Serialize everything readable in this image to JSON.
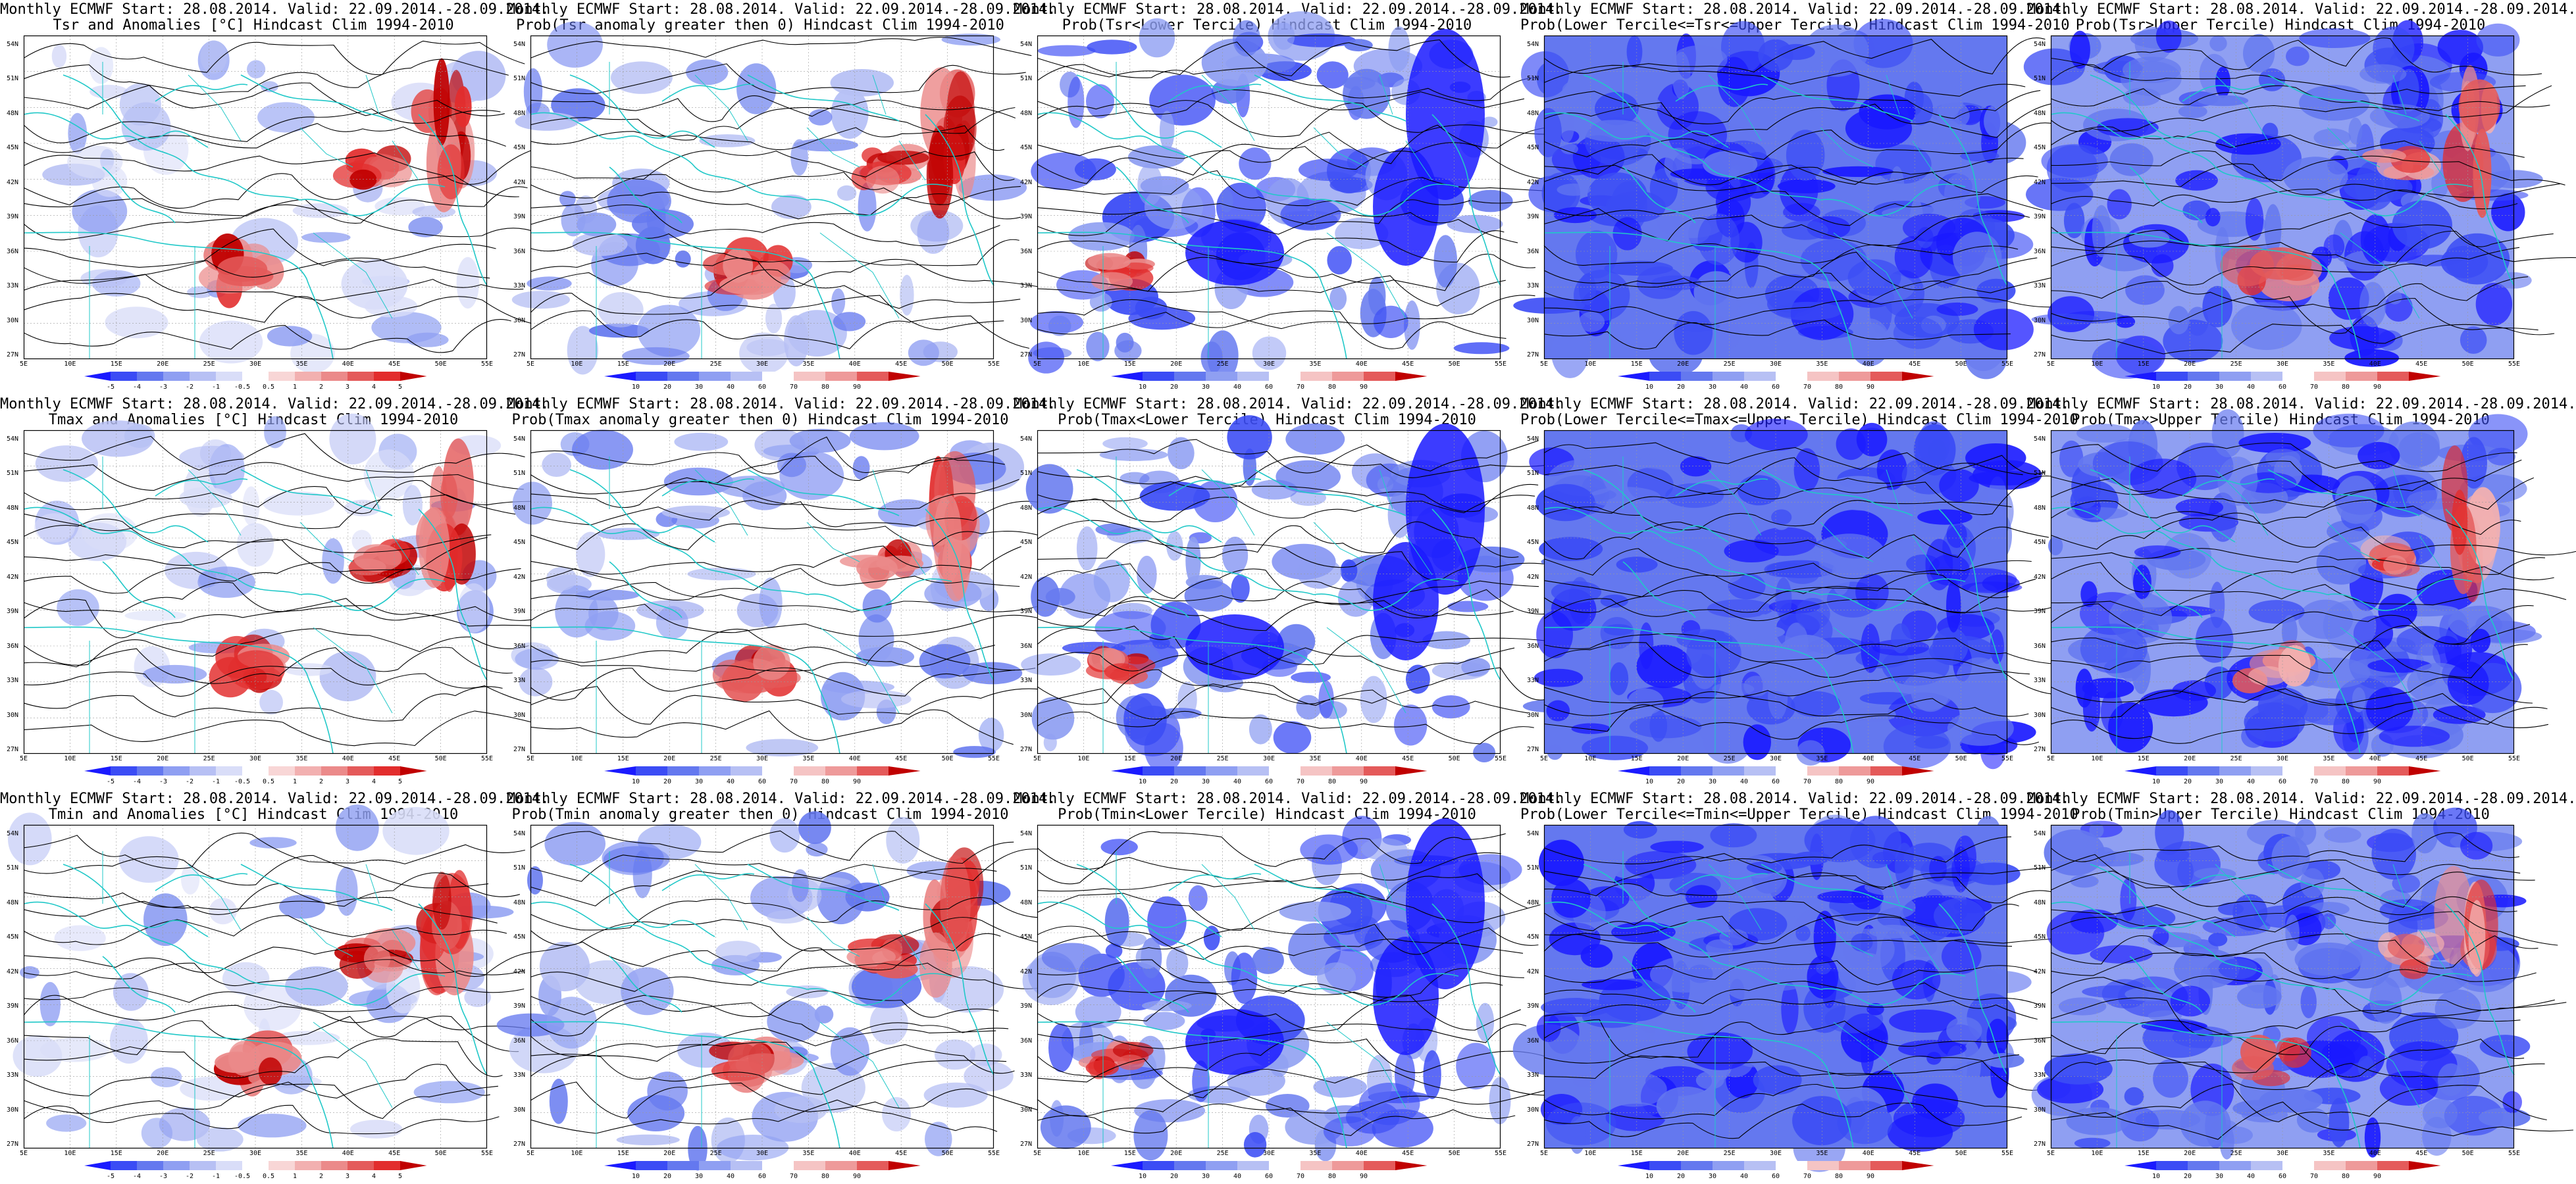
{
  "panels": [
    {
      "title1": "Monthly ECMWF Start: 28.08.2014. Valid: 22.09.2014.-28.09.2014.",
      "title2": "Tsr and Anomalies [°C] Hindcast Clim 1994-2010",
      "variable": "Tsr",
      "kind": "anomaly"
    },
    {
      "title1": "Monthly ECMWF Start: 28.08.2014. Valid: 22.09.2014.-28.09.2014.",
      "title2": "Prob(Tsr anomaly greater then 0) Hindcast Clim 1994-2010",
      "variable": "Tsr",
      "kind": "prob_pos"
    },
    {
      "title1": "Monthly ECMWF Start: 28.08.2014. Valid: 22.09.2014.-28.09.2014.",
      "title2": "Prob(Tsr<Lower Tercile) Hindcast Clim 1994-2010",
      "variable": "Tsr",
      "kind": "prob_lower"
    },
    {
      "title1": "Monthly ECMWF Start: 28.08.2014. Valid: 22.09.2014.-28.09.2014.",
      "title2": "Prob(Lower Tercile<=Tsr<=Upper Tercile) Hindcast Clim 1994-2010",
      "variable": "Tsr",
      "kind": "prob_middle"
    },
    {
      "title1": "Monthly ECMWF Start: 28.08.2014. Valid: 22.09.2014.-28.09.2014.",
      "title2": "Prob(Tsr>Upper Tercile) Hindcast Clim 1994-2010",
      "variable": "Tsr",
      "kind": "prob_upper"
    },
    {
      "title1": "Monthly ECMWF Start: 28.08.2014. Valid: 22.09.2014.-28.09.2014.",
      "title2": "Tmax and Anomalies [°C] Hindcast Clim 1994-2010",
      "variable": "Tmax",
      "kind": "anomaly"
    },
    {
      "title1": "Monthly ECMWF Start: 28.08.2014. Valid: 22.09.2014.-28.09.2014.",
      "title2": "Prob(Tmax anomaly greater then 0) Hindcast Clim 1994-2010",
      "variable": "Tmax",
      "kind": "prob_pos"
    },
    {
      "title1": "Monthly ECMWF Start: 28.08.2014. Valid: 22.09.2014.-28.09.2014.",
      "title2": "Prob(Tmax<Lower Tercile) Hindcast Clim 1994-2010",
      "variable": "Tmax",
      "kind": "prob_lower"
    },
    {
      "title1": "Monthly ECMWF Start: 28.08.2014. Valid: 22.09.2014.-28.09.2014.",
      "title2": "Prob(Lower Tercile<=Tmax<=Upper Tercile) Hindcast Clim 1994-2010",
      "variable": "Tmax",
      "kind": "prob_middle"
    },
    {
      "title1": "Monthly ECMWF Start: 28.08.2014. Valid: 22.09.2014.-28.09.2014.",
      "title2": "Prob(Tmax>Upper Tercile) Hindcast Clim 1994-2010",
      "variable": "Tmax",
      "kind": "prob_upper"
    },
    {
      "title1": "Monthly ECMWF Start: 28.08.2014. Valid: 22.09.2014.-28.09.2014.",
      "title2": "Tmin and Anomalies [°C] Hindcast Clim 1994-2010",
      "variable": "Tmin",
      "kind": "anomaly"
    },
    {
      "title1": "Monthly ECMWF Start: 28.08.2014. Valid: 22.09.2014.-28.09.2014.",
      "title2": "Prob(Tmin anomaly greater then 0) Hindcast Clim 1994-2010",
      "variable": "Tmin",
      "kind": "prob_pos"
    },
    {
      "title1": "Monthly ECMWF Start: 28.08.2014. Valid: 22.09.2014.-28.09.2014.",
      "title2": "Prob(Tmin<Lower Tercile) Hindcast Clim 1994-2010",
      "variable": "Tmin",
      "kind": "prob_lower"
    },
    {
      "title1": "Monthly ECMWF Start: 28.08.2014. Valid: 22.09.2014.-28.09.2014.",
      "title2": "Prob(Lower Tercile<=Tmin<=Upper Tercile) Hindcast Clim 1994-2010",
      "variable": "Tmin",
      "kind": "prob_middle"
    },
    {
      "title1": "Monthly ECMWF Start: 28.08.2014. Valid: 22.09.2014.-28.09.2014.",
      "title2": "Prob(Tmin>Upper Tercile) Hindcast Clim 1994-2010",
      "variable": "Tmin",
      "kind": "prob_upper"
    }
  ],
  "lat_labels": [
    "54N",
    "51N",
    "48N",
    "45N",
    "42N",
    "39N",
    "36N",
    "33N",
    "30N",
    "27N"
  ],
  "lon_labels": [
    "5E",
    "10E",
    "15E",
    "20E",
    "25E",
    "30E",
    "35E",
    "40E",
    "45E",
    "50E",
    "55E"
  ],
  "colorbars": {
    "anomaly": {
      "labels": [
        "-5",
        "-4",
        "-3",
        "-2",
        "-1",
        "-0.5",
        "0.5",
        "1",
        "2",
        "3",
        "4",
        "5"
      ],
      "colors": [
        "#1a1aff",
        "#3b4cf5",
        "#6478ef",
        "#8f9ff2",
        "#b7c0f4",
        "#d9ddf8",
        "#ffffff",
        "#f8d6d6",
        "#f2b0b0",
        "#eb8a8a",
        "#e45a5a",
        "#e22d2d",
        "#c00000"
      ]
    },
    "probability": {
      "labels": [
        "10",
        "20",
        "30",
        "40",
        "60",
        "70",
        "80",
        "90"
      ],
      "colors": [
        "#1a1aff",
        "#3b4cf5",
        "#6478ef",
        "#8f9ff2",
        "#b7c0f4",
        "#ffffff",
        "#f5c4c4",
        "#ee9a9a",
        "#e45a5a",
        "#c00000"
      ]
    }
  },
  "palette": {
    "coast": "#20c8c8",
    "contour": "#000000",
    "grid": "#9a9a9a"
  }
}
